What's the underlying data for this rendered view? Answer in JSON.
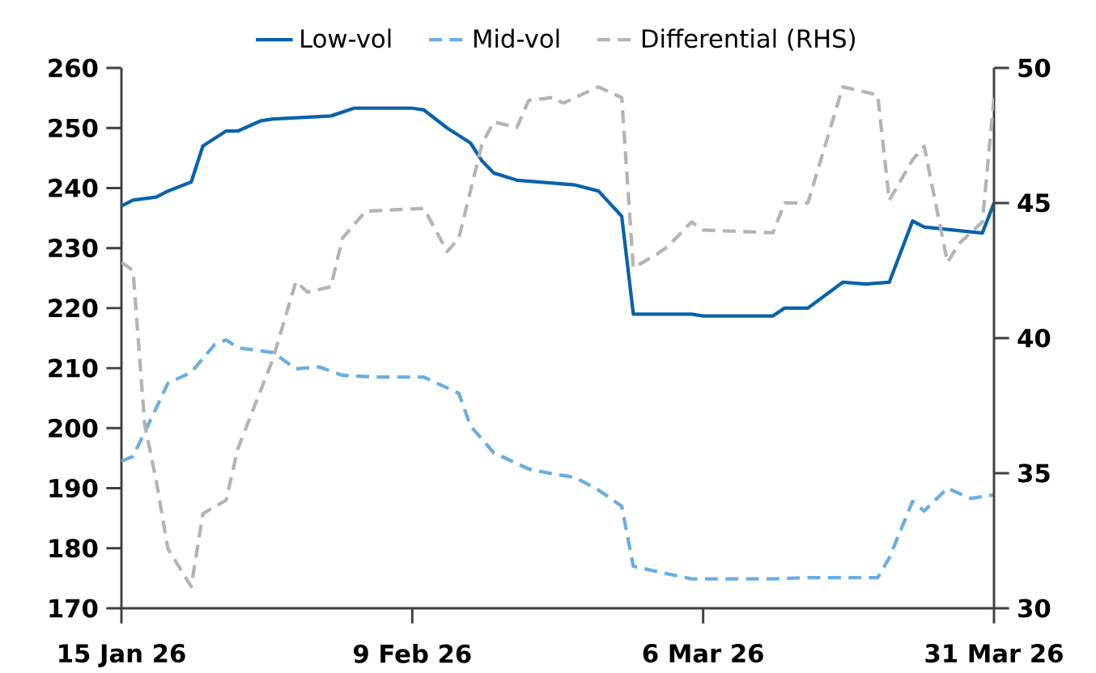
{
  "chart_data": {
    "type": "line",
    "xlim": [
      "2026-01-15",
      "2026-03-31"
    ],
    "xticks": [
      {
        "value": "2026-01-15",
        "label": "15 Jan 26"
      },
      {
        "value": "2026-02-09",
        "label": "9 Feb 26"
      },
      {
        "value": "2026-03-06",
        "label": "6 Mar 26"
      },
      {
        "value": "2026-03-31",
        "label": "31 Mar 26"
      }
    ],
    "ylim": [
      170,
      260
    ],
    "yticks": [
      170,
      180,
      190,
      200,
      210,
      220,
      230,
      240,
      250,
      260
    ],
    "y2lim": [
      30,
      50
    ],
    "y2ticks": [
      30,
      35,
      40,
      45,
      50
    ],
    "grid": false,
    "legend": "top",
    "marker": "none",
    "series": [
      {
        "name": "Low-vol",
        "color": "#0a62ad",
        "line_style": "solid",
        "x": [
          "2026-01-15",
          "2026-01-16",
          "2026-01-18",
          "2026-01-19",
          "2026-01-21",
          "2026-01-22",
          "2026-01-24",
          "2026-01-25",
          "2026-01-27",
          "2026-01-28",
          "2026-01-30",
          "2026-02-02",
          "2026-02-04",
          "2026-02-09",
          "2026-02-10",
          "2026-02-12",
          "2026-02-14",
          "2026-02-15",
          "2026-02-16",
          "2026-02-18",
          "2026-02-20",
          "2026-02-23",
          "2026-02-24",
          "2026-02-25",
          "2026-02-27",
          "2026-02-28",
          "2026-03-05",
          "2026-03-06",
          "2026-03-12",
          "2026-03-13",
          "2026-03-15",
          "2026-03-18",
          "2026-03-20",
          "2026-03-22",
          "2026-03-24",
          "2026-03-25",
          "2026-03-30",
          "2026-03-31"
        ],
        "values": [
          237,
          238,
          238.5,
          239.5,
          241,
          247,
          249.5,
          249.5,
          251.2,
          251.5,
          251.7,
          252,
          253.3,
          253.3,
          253,
          250,
          247.5,
          244.5,
          242.5,
          241.3,
          241,
          240.5,
          240,
          239.5,
          235.3,
          219,
          219,
          218.7,
          218.7,
          220,
          220,
          224.3,
          224,
          224.3,
          234.5,
          233.5,
          232.5,
          237.5
        ]
      },
      {
        "name": "Mid-vol",
        "color": "#6aaee2",
        "line_style": "dashed",
        "x": [
          "2026-01-15",
          "2026-01-16",
          "2026-01-18",
          "2026-01-19",
          "2026-01-21",
          "2026-01-23",
          "2026-01-24",
          "2026-01-25",
          "2026-01-28",
          "2026-01-30",
          "2026-02-01",
          "2026-02-03",
          "2026-02-06",
          "2026-02-10",
          "2026-02-13",
          "2026-02-14",
          "2026-02-16",
          "2026-02-19",
          "2026-02-21",
          "2026-02-23",
          "2026-02-25",
          "2026-02-27",
          "2026-02-28",
          "2026-03-03",
          "2026-03-05",
          "2026-03-12",
          "2026-03-15",
          "2026-03-21",
          "2026-03-22",
          "2026-03-24",
          "2026-03-25",
          "2026-03-27",
          "2026-03-29",
          "2026-03-31"
        ],
        "values": [
          194.5,
          195.3,
          203.4,
          207.5,
          209.3,
          213.9,
          214.7,
          213.4,
          212.6,
          209.9,
          210.2,
          208.8,
          208.5,
          208.5,
          205.8,
          200.4,
          195.9,
          193.2,
          192.4,
          191.8,
          189.7,
          187.0,
          177.0,
          175.7,
          174.9,
          174.9,
          175.1,
          175.1,
          178.4,
          187.8,
          186.2,
          190.0,
          188.3,
          188.9
        ]
      },
      {
        "name": "Differential (RHS)",
        "color": "#b4b4b4",
        "line_style": "dashed",
        "axis": "y2",
        "x": [
          "2026-01-15",
          "2026-01-16",
          "2026-01-17",
          "2026-01-18",
          "2026-01-19",
          "2026-01-21",
          "2026-01-22",
          "2026-01-24",
          "2026-01-25",
          "2026-01-27",
          "2026-01-28",
          "2026-01-30",
          "2026-01-31",
          "2026-02-02",
          "2026-02-03",
          "2026-02-05",
          "2026-02-10",
          "2026-02-12",
          "2026-02-13",
          "2026-02-15",
          "2026-02-16",
          "2026-02-18",
          "2026-02-19",
          "2026-02-21",
          "2026-02-22",
          "2026-02-25",
          "2026-02-27",
          "2026-02-28",
          "2026-03-02",
          "2026-03-03",
          "2026-03-05",
          "2026-03-06",
          "2026-03-12",
          "2026-03-13",
          "2026-03-15",
          "2026-03-18",
          "2026-03-21",
          "2026-03-22",
          "2026-03-24",
          "2026-03-25",
          "2026-03-27",
          "2026-03-28",
          "2026-03-30",
          "2026-03-31"
        ],
        "values": [
          42.8,
          42.5,
          36.8,
          34.7,
          32.2,
          30.8,
          33.5,
          34.0,
          35.9,
          38.1,
          39.2,
          42.1,
          41.7,
          41.9,
          43.7,
          44.7,
          44.8,
          43.2,
          43.7,
          47.2,
          48.0,
          47.8,
          48.8,
          48.9,
          48.7,
          49.3,
          48.9,
          42.6,
          43.1,
          43.4,
          44.3,
          44.0,
          43.9,
          45.0,
          45.0,
          49.3,
          49.0,
          45.1,
          46.6,
          47.1,
          42.8,
          43.5,
          44.3,
          48.9
        ]
      }
    ]
  }
}
